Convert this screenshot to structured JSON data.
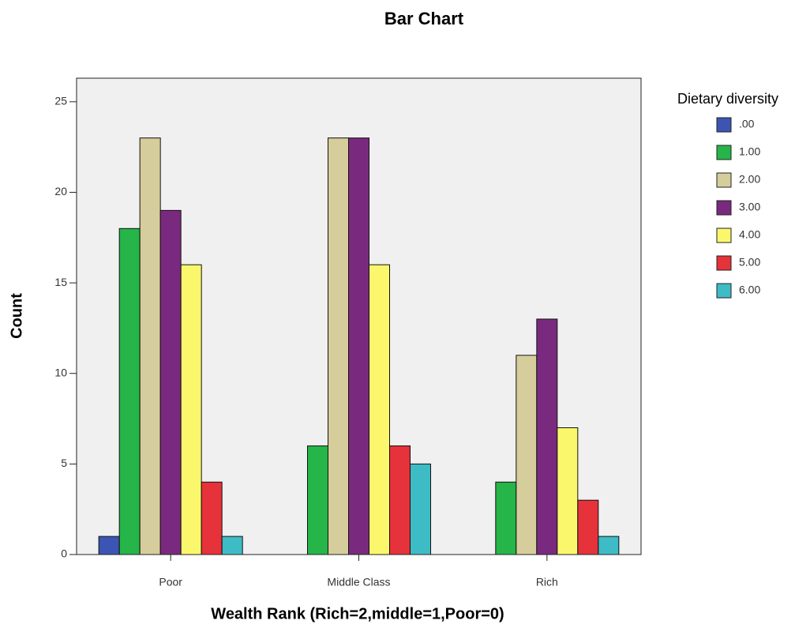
{
  "chart_data": {
    "type": "bar",
    "title": "Bar Chart",
    "x_label": "Wealth Rank (Rich=2,middle=1,Poor=0)",
    "y_label": "Count",
    "legend_title": "Dietary diversity",
    "legend": "right",
    "categories": [
      "Poor",
      "Middle Class",
      "Rich"
    ],
    "series": [
      {
        "name": ".00",
        "color": "#3c55b4",
        "values": [
          1,
          null,
          null
        ]
      },
      {
        "name": "1.00",
        "color": "#25b548",
        "values": [
          18,
          6,
          4
        ]
      },
      {
        "name": "2.00",
        "color": "#d5cd9b",
        "values": [
          23,
          23,
          11
        ]
      },
      {
        "name": "3.00",
        "color": "#7a2a7e",
        "values": [
          19,
          23,
          13
        ]
      },
      {
        "name": "4.00",
        "color": "#fbf76c",
        "values": [
          16,
          16,
          7
        ]
      },
      {
        "name": "5.00",
        "color": "#e6323a",
        "values": [
          4,
          6,
          3
        ]
      },
      {
        "name": "6.00",
        "color": "#3dbcc5",
        "values": [
          1,
          5,
          1
        ]
      }
    ],
    "ylim": [
      0,
      26.3
    ],
    "yticks": [
      0,
      5,
      10,
      15,
      20,
      25
    ]
  }
}
